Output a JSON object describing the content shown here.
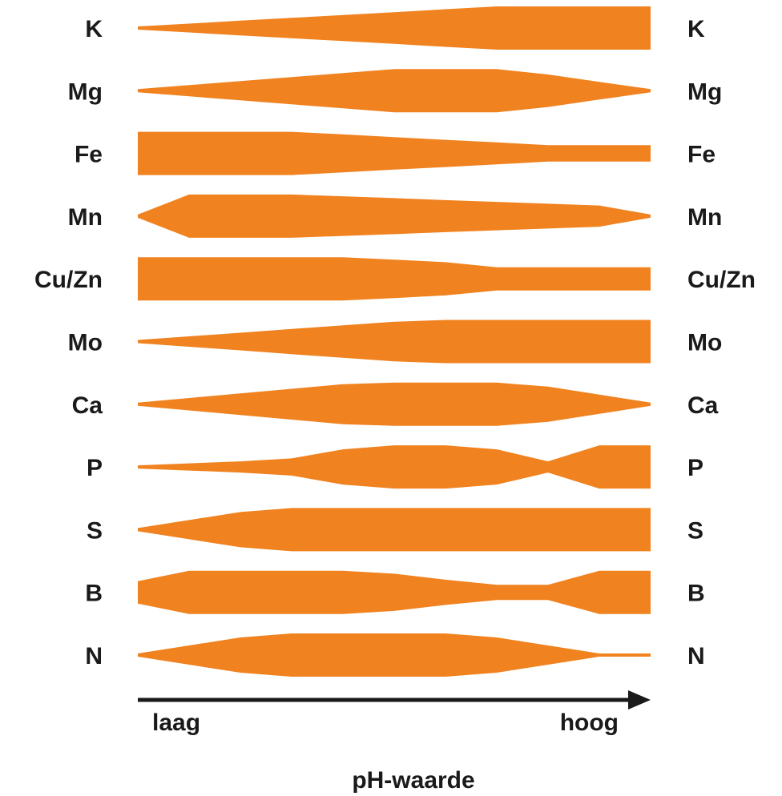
{
  "chart_data": {
    "type": "area",
    "title": "",
    "xlabel": "pH-waarde",
    "x_axis": {
      "low_label": "laag",
      "high_label": "hoog"
    },
    "x_positions": [
      0,
      0.1,
      0.2,
      0.3,
      0.4,
      0.5,
      0.6,
      0.7,
      0.8,
      0.9,
      1.0
    ],
    "series": [
      {
        "name": "K",
        "values": [
          0.0,
          0.14,
          0.29,
          0.43,
          0.57,
          0.71,
          0.86,
          1.0,
          1.0,
          1.0,
          1.0
        ]
      },
      {
        "name": "Mg",
        "values": [
          0.0,
          0.2,
          0.4,
          0.6,
          0.8,
          1.0,
          1.0,
          1.0,
          0.73,
          0.36,
          0.0
        ]
      },
      {
        "name": "Fe",
        "values": [
          1.0,
          1.0,
          1.0,
          1.0,
          0.87,
          0.73,
          0.6,
          0.47,
          0.33,
          0.33,
          0.33
        ]
      },
      {
        "name": "Mn",
        "values": [
          0.0,
          1.0,
          1.0,
          1.0,
          0.91,
          0.82,
          0.72,
          0.63,
          0.54,
          0.45,
          0.0
        ]
      },
      {
        "name": "Cu/Zn",
        "values": [
          1.0,
          1.0,
          1.0,
          1.0,
          1.0,
          0.88,
          0.75,
          0.5,
          0.5,
          0.5,
          0.5
        ]
      },
      {
        "name": "Mo",
        "values": [
          0.0,
          0.18,
          0.36,
          0.55,
          0.73,
          0.91,
          1.0,
          1.0,
          1.0,
          1.0,
          1.0
        ]
      },
      {
        "name": "Ca",
        "values": [
          0.0,
          0.23,
          0.46,
          0.69,
          0.92,
          1.0,
          1.0,
          1.0,
          0.8,
          0.4,
          0.0
        ]
      },
      {
        "name": "P",
        "values": [
          0.0,
          0.1,
          0.2,
          0.35,
          0.8,
          1.0,
          1.0,
          0.8,
          0.2,
          1.0,
          1.0
        ]
      },
      {
        "name": "S",
        "values": [
          0.0,
          0.4,
          0.8,
          1.0,
          1.0,
          1.0,
          1.0,
          1.0,
          1.0,
          1.0,
          1.0
        ]
      },
      {
        "name": "B",
        "values": [
          0.48,
          1.0,
          1.0,
          1.0,
          1.0,
          0.85,
          0.55,
          0.3,
          0.3,
          1.0,
          1.0
        ]
      },
      {
        "name": "N",
        "values": [
          0.0,
          0.4,
          0.8,
          1.0,
          1.0,
          1.0,
          1.0,
          0.8,
          0.4,
          0.0,
          0.0
        ]
      }
    ],
    "color": "#F0821F",
    "legend": "none",
    "grid": false
  }
}
